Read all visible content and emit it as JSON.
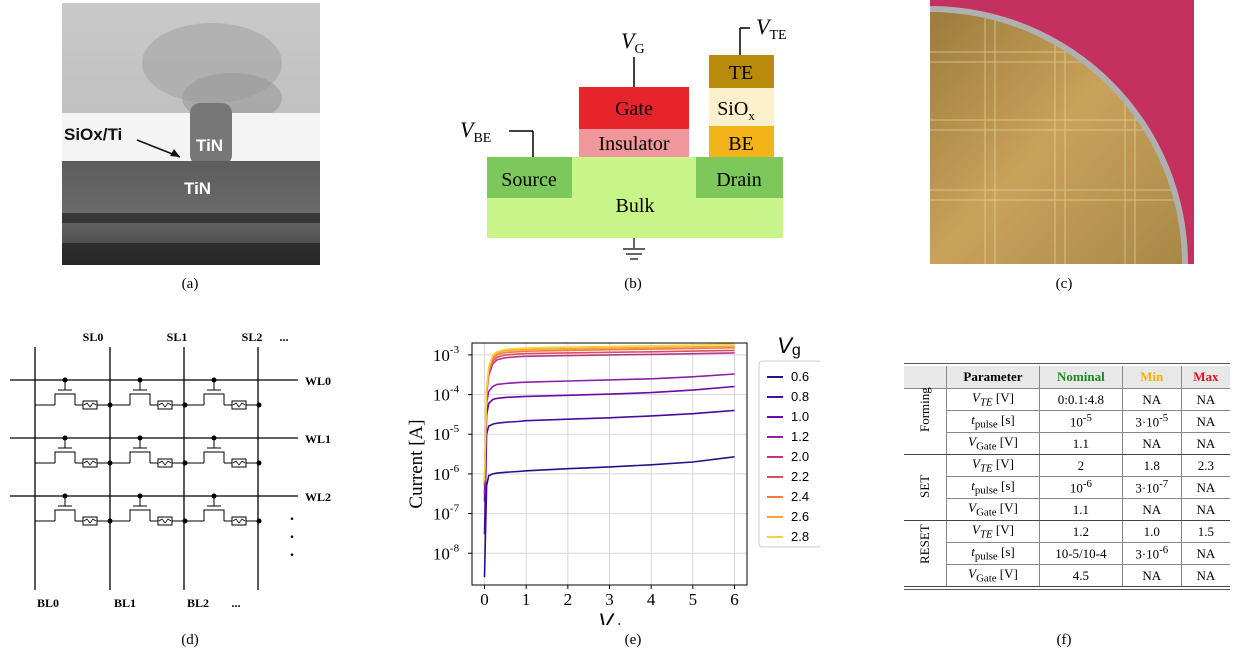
{
  "captions": [
    "(a)",
    "(b)",
    "(c)",
    "(d)",
    "(e)",
    "(f)"
  ],
  "panel_a": {
    "labels": {
      "siox_ti": "SiOx/Ti",
      "tin_top": "TiN",
      "tin_bottom": "TiN"
    }
  },
  "panel_b": {
    "vg": "V",
    "vg_sub": "G",
    "vte": "V",
    "vte_sub": "TE",
    "vbe": "V",
    "vbe_sub": "BE",
    "blocks": {
      "gate": "Gate",
      "insulator": "Insulator",
      "source": "Source",
      "bulk": "Bulk",
      "drain": "Drain",
      "te": "TE",
      "siox": "SiO",
      "siox_sub": "x",
      "be": "BE"
    },
    "colors": {
      "gate": "#e8242b",
      "insulator": "#f0979b",
      "source": "#7cc85a",
      "bulk": "#c7f58a",
      "drain": "#7cc85a",
      "te": "#b98b0a",
      "siox": "#fdf0cc",
      "be": "#f5b31a"
    }
  },
  "panel_d": {
    "sl": [
      "SL0",
      "SL1",
      "SL2",
      "..."
    ],
    "wl": [
      "WL0",
      "WL1",
      "WL2"
    ],
    "bl": [
      "BL0",
      "BL1",
      "BL2",
      "..."
    ]
  },
  "chart_data": {
    "type": "line",
    "xlabel": "V",
    "xlabel_sub": "d",
    "ylabel": "Current [A]",
    "legend_title": "V",
    "legend_title_sub": "g",
    "legend_position": "outside-right",
    "xlim": [
      -0.3,
      6.3
    ],
    "ylim_log10": [
      -8.8,
      -2.7
    ],
    "xticks": [
      "0",
      "1",
      "2",
      "3",
      "4",
      "5",
      "6"
    ],
    "yticks": [
      {
        "base": "10",
        "exp": "-3"
      },
      {
        "base": "10",
        "exp": "-4"
      },
      {
        "base": "10",
        "exp": "-5"
      },
      {
        "base": "10",
        "exp": "-6"
      },
      {
        "base": "10",
        "exp": "-7"
      },
      {
        "base": "10",
        "exp": "-8"
      }
    ],
    "grid": true,
    "x": [
      0,
      0.05,
      0.1,
      0.2,
      0.3,
      0.5,
      0.8,
      1,
      2,
      3,
      4,
      5,
      6
    ],
    "series": [
      {
        "name": "0.6",
        "color": "#2a0f8a",
        "values": [
          2.5e-09,
          5e-07,
          9e-07,
          1e-06,
          1.05e-06,
          1.1e-06,
          1.15e-06,
          1.2e-06,
          1.35e-06,
          1.5e-06,
          1.7e-06,
          2e-06,
          2.7e-06
        ]
      },
      {
        "name": "0.8",
        "color": "#4c0aa0",
        "values": [
          3e-08,
          1e-05,
          1.6e-05,
          1.8e-05,
          1.9e-05,
          2e-05,
          2.1e-05,
          2.2e-05,
          2.4e-05,
          2.6e-05,
          2.9e-05,
          3.3e-05,
          4e-05
        ]
      },
      {
        "name": "1.0",
        "color": "#6a0aa6",
        "values": [
          2e-07,
          3e-05,
          6e-05,
          7.5e-05,
          8e-05,
          8.5e-05,
          8.8e-05,
          9e-05,
          9.6e-05,
          0.000103,
          0.000112,
          0.00013,
          0.00016
        ]
      },
      {
        "name": "1.2",
        "color": "#8f1ea8",
        "values": [
          3e-07,
          6e-05,
          0.00012,
          0.00016,
          0.00018,
          0.00019,
          0.0002,
          0.000205,
          0.00022,
          0.000235,
          0.00025,
          0.00028,
          0.00033
        ]
      },
      {
        "name": "2.0",
        "color": "#b8348f",
        "values": [
          5e-07,
          0.0001,
          0.0003,
          0.0006,
          0.00075,
          0.00085,
          0.0009,
          0.00092,
          0.00096,
          0.001,
          0.00103,
          0.00107,
          0.00112
        ]
      },
      {
        "name": "2.2",
        "color": "#d8505f",
        "values": [
          5.5e-07,
          0.00011,
          0.00035,
          0.0007,
          0.00087,
          0.001,
          0.00105,
          0.00108,
          0.00112,
          0.00116,
          0.0012,
          0.00125,
          0.0013
        ]
      },
      {
        "name": "2.4",
        "color": "#ef7a3e",
        "values": [
          6e-07,
          0.00012,
          0.0004,
          0.0008,
          0.001,
          0.00115,
          0.0012,
          0.00124,
          0.0013,
          0.00135,
          0.0014,
          0.00145,
          0.00152
        ]
      },
      {
        "name": "2.6",
        "color": "#f8a431",
        "values": [
          6.5e-07,
          0.00013,
          0.00045,
          0.0009,
          0.0011,
          0.00128,
          0.00133,
          0.00137,
          0.00143,
          0.00148,
          0.00154,
          0.0016,
          0.00168
        ]
      },
      {
        "name": "2.8",
        "color": "#f7d23a",
        "values": [
          7e-07,
          0.00014,
          0.0005,
          0.001,
          0.0012,
          0.00138,
          0.00145,
          0.0015,
          0.00157,
          0.00163,
          0.0017,
          0.00178,
          0.00188
        ]
      }
    ]
  },
  "table": {
    "header": {
      "parameter": "Parameter",
      "nominal": "Nominal",
      "min": "Min",
      "max": "Max"
    },
    "header_colors": {
      "nominal": "#1a8a1a",
      "min": "#f0b400",
      "max": "#e0141e"
    },
    "groups": [
      {
        "name": "Forming",
        "rows": [
          {
            "param": "V",
            "param_sub": "TE",
            "unit": "[V]",
            "nominal": "0:0.1:4.8",
            "min": "NA",
            "max": "NA"
          },
          {
            "param": "t",
            "param_sub": "pulse",
            "unit": "[s]",
            "nominal": "10",
            "nominal_exp": "-5",
            "min": "3·10",
            "min_exp": "-5",
            "max": "NA"
          },
          {
            "param": "V",
            "param_sub": "Gate",
            "unit": "[V]",
            "nominal": "1.1",
            "min": "NA",
            "max": "NA"
          }
        ]
      },
      {
        "name": "SET",
        "rows": [
          {
            "param": "V",
            "param_sub": "TE",
            "unit": "[V]",
            "nominal": "2",
            "min": "1.8",
            "max": "2.3"
          },
          {
            "param": "t",
            "param_sub": "pulse",
            "unit": "[s]",
            "nominal": "10",
            "nominal_exp": "-6",
            "min": "3·10",
            "min_exp": "-7",
            "max": "NA"
          },
          {
            "param": "V",
            "param_sub": "Gate",
            "unit": "[V]",
            "nominal": "1.1",
            "min": "NA",
            "max": "NA"
          }
        ]
      },
      {
        "name": "RESET",
        "rows": [
          {
            "param": "V",
            "param_sub": "TE",
            "unit": "[V]",
            "nominal": "1.2",
            "min": "1.0",
            "max": "1.5"
          },
          {
            "param": "t",
            "param_sub": "pulse",
            "unit": "[s]",
            "nominal": "10-5/10-4",
            "min": "3·10",
            "min_exp": "-6",
            "max": "NA"
          },
          {
            "param": "V",
            "param_sub": "Gate",
            "unit": "[V]",
            "nominal": "4.5",
            "min": "NA",
            "max": "NA"
          }
        ]
      }
    ]
  }
}
